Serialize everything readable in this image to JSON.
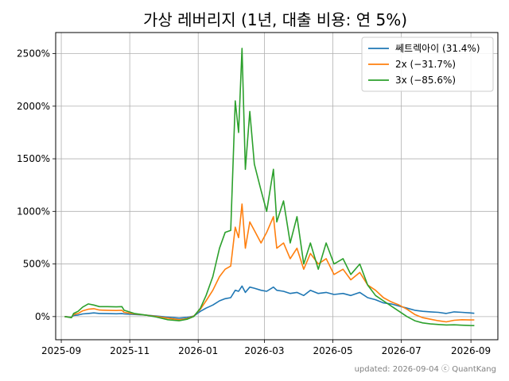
{
  "chart_data": {
    "type": "line",
    "title": "가상 레버리지 (1년, 대출 비용: 연 5%)",
    "xlabel": "",
    "ylabel": "",
    "x_ticks": [
      "2025-09",
      "2025-11",
      "2026-01",
      "2026-03",
      "2026-05",
      "2026-07",
      "2026-09"
    ],
    "y_ticks": [
      "0%",
      "500%",
      "1000%",
      "1500%",
      "2000%",
      "2500%"
    ],
    "xlim": [
      "2025-08-27",
      "2026-09-25"
    ],
    "ylim": [
      -220,
      2700
    ],
    "grid": true,
    "legend_position": "top-right",
    "colors": {
      "series_1": "#1f77b4",
      "series_2": "#ff7f0e",
      "series_3": "#2ca02c",
      "grid": "#b0b0b0"
    },
    "footer": "updated: 2026-09-04 ⓒ QuantKang",
    "series": [
      {
        "name": "쎄트렉아이 (31.4%)",
        "color": "#1f77b4",
        "points": [
          [
            "2025-09-04",
            0
          ],
          [
            "2025-09-10",
            -5
          ],
          [
            "2025-09-12",
            10
          ],
          [
            "2025-09-16",
            15
          ],
          [
            "2025-09-20",
            25
          ],
          [
            "2025-09-25",
            30
          ],
          [
            "2025-09-30",
            35
          ],
          [
            "2025-10-05",
            30
          ],
          [
            "2025-10-12",
            28
          ],
          [
            "2025-10-20",
            27
          ],
          [
            "2025-10-25",
            28
          ],
          [
            "2025-10-27",
            25
          ],
          [
            "2025-11-05",
            20
          ],
          [
            "2025-11-15",
            15
          ],
          [
            "2025-11-25",
            5
          ],
          [
            "2025-12-05",
            -5
          ],
          [
            "2025-12-15",
            -15
          ],
          [
            "2025-12-22",
            -8
          ],
          [
            "2025-12-28",
            5
          ],
          [
            "2026-01-03",
            50
          ],
          [
            "2026-01-08",
            80
          ],
          [
            "2026-01-14",
            110
          ],
          [
            "2026-01-20",
            150
          ],
          [
            "2026-01-25",
            170
          ],
          [
            "2026-01-30",
            180
          ],
          [
            "2026-02-03",
            250
          ],
          [
            "2026-02-06",
            240
          ],
          [
            "2026-02-09",
            290
          ],
          [
            "2026-02-12",
            230
          ],
          [
            "2026-02-16",
            280
          ],
          [
            "2026-02-20",
            270
          ],
          [
            "2026-02-26",
            250
          ],
          [
            "2026-03-03",
            240
          ],
          [
            "2026-03-09",
            280
          ],
          [
            "2026-03-12",
            250
          ],
          [
            "2026-03-18",
            240
          ],
          [
            "2026-03-24",
            220
          ],
          [
            "2026-03-30",
            230
          ],
          [
            "2026-04-05",
            200
          ],
          [
            "2026-04-11",
            250
          ],
          [
            "2026-04-18",
            220
          ],
          [
            "2026-04-25",
            230
          ],
          [
            "2026-05-02",
            210
          ],
          [
            "2026-05-10",
            220
          ],
          [
            "2026-05-17",
            200
          ],
          [
            "2026-05-25",
            230
          ],
          [
            "2026-06-01",
            180
          ],
          [
            "2026-06-08",
            160
          ],
          [
            "2026-06-15",
            130
          ],
          [
            "2026-06-22",
            120
          ],
          [
            "2026-06-29",
            100
          ],
          [
            "2026-07-06",
            80
          ],
          [
            "2026-07-13",
            60
          ],
          [
            "2026-07-20",
            50
          ],
          [
            "2026-07-27",
            45
          ],
          [
            "2026-08-03",
            40
          ],
          [
            "2026-08-10",
            30
          ],
          [
            "2026-08-17",
            45
          ],
          [
            "2026-08-24",
            40
          ],
          [
            "2026-08-31",
            35
          ],
          [
            "2026-09-04",
            31.4
          ]
        ]
      },
      {
        "name": "2x (−31.7%)",
        "color": "#ff7f0e",
        "points": [
          [
            "2025-09-04",
            0
          ],
          [
            "2025-09-10",
            -8
          ],
          [
            "2025-09-12",
            20
          ],
          [
            "2025-09-16",
            30
          ],
          [
            "2025-09-20",
            55
          ],
          [
            "2025-09-25",
            70
          ],
          [
            "2025-09-30",
            75
          ],
          [
            "2025-10-05",
            62
          ],
          [
            "2025-10-12",
            60
          ],
          [
            "2025-10-20",
            58
          ],
          [
            "2025-10-25",
            60
          ],
          [
            "2025-10-27",
            40
          ],
          [
            "2025-11-05",
            25
          ],
          [
            "2025-11-15",
            15
          ],
          [
            "2025-11-25",
            0
          ],
          [
            "2025-12-05",
            -15
          ],
          [
            "2025-12-15",
            -30
          ],
          [
            "2025-12-22",
            -20
          ],
          [
            "2025-12-28",
            5
          ],
          [
            "2026-01-03",
            70
          ],
          [
            "2026-01-08",
            150
          ],
          [
            "2026-01-14",
            250
          ],
          [
            "2026-01-20",
            380
          ],
          [
            "2026-01-25",
            450
          ],
          [
            "2026-01-30",
            480
          ],
          [
            "2026-02-03",
            850
          ],
          [
            "2026-02-06",
            750
          ],
          [
            "2026-02-09",
            1070
          ],
          [
            "2026-02-12",
            650
          ],
          [
            "2026-02-16",
            900
          ],
          [
            "2026-02-20",
            820
          ],
          [
            "2026-02-26",
            700
          ],
          [
            "2026-03-03",
            800
          ],
          [
            "2026-03-09",
            950
          ],
          [
            "2026-03-12",
            650
          ],
          [
            "2026-03-18",
            700
          ],
          [
            "2026-03-24",
            550
          ],
          [
            "2026-03-30",
            650
          ],
          [
            "2026-04-05",
            450
          ],
          [
            "2026-04-11",
            600
          ],
          [
            "2026-04-18",
            500
          ],
          [
            "2026-04-25",
            550
          ],
          [
            "2026-05-02",
            400
          ],
          [
            "2026-05-10",
            450
          ],
          [
            "2026-05-17",
            350
          ],
          [
            "2026-05-25",
            420
          ],
          [
            "2026-06-01",
            300
          ],
          [
            "2026-06-08",
            250
          ],
          [
            "2026-06-15",
            180
          ],
          [
            "2026-06-22",
            140
          ],
          [
            "2026-06-29",
            110
          ],
          [
            "2026-07-06",
            70
          ],
          [
            "2026-07-13",
            20
          ],
          [
            "2026-07-20",
            -10
          ],
          [
            "2026-07-27",
            -25
          ],
          [
            "2026-08-03",
            -40
          ],
          [
            "2026-08-10",
            -50
          ],
          [
            "2026-08-17",
            -35
          ],
          [
            "2026-08-24",
            -30
          ],
          [
            "2026-08-31",
            -32
          ],
          [
            "2026-09-04",
            -31.7
          ]
        ]
      },
      {
        "name": "3x (−85.6%)",
        "color": "#2ca02c",
        "points": [
          [
            "2025-09-04",
            0
          ],
          [
            "2025-09-10",
            -10
          ],
          [
            "2025-09-12",
            30
          ],
          [
            "2025-09-16",
            50
          ],
          [
            "2025-09-20",
            90
          ],
          [
            "2025-09-25",
            120
          ],
          [
            "2025-09-30",
            110
          ],
          [
            "2025-10-05",
            95
          ],
          [
            "2025-10-12",
            95
          ],
          [
            "2025-10-20",
            92
          ],
          [
            "2025-10-25",
            95
          ],
          [
            "2025-10-27",
            60
          ],
          [
            "2025-11-05",
            30
          ],
          [
            "2025-11-15",
            15
          ],
          [
            "2025-11-25",
            -5
          ],
          [
            "2025-12-05",
            -30
          ],
          [
            "2025-12-15",
            -40
          ],
          [
            "2025-12-22",
            -25
          ],
          [
            "2025-12-28",
            0
          ],
          [
            "2026-01-03",
            80
          ],
          [
            "2026-01-08",
            200
          ],
          [
            "2026-01-14",
            380
          ],
          [
            "2026-01-20",
            650
          ],
          [
            "2026-01-25",
            800
          ],
          [
            "2026-01-30",
            820
          ],
          [
            "2026-02-03",
            2050
          ],
          [
            "2026-02-06",
            1750
          ],
          [
            "2026-02-09",
            2550
          ],
          [
            "2026-02-12",
            1400
          ],
          [
            "2026-02-16",
            1950
          ],
          [
            "2026-02-20",
            1450
          ],
          [
            "2026-02-26",
            1200
          ],
          [
            "2026-03-03",
            1000
          ],
          [
            "2026-03-09",
            1400
          ],
          [
            "2026-03-12",
            900
          ],
          [
            "2026-03-18",
            1100
          ],
          [
            "2026-03-24",
            700
          ],
          [
            "2026-03-30",
            950
          ],
          [
            "2026-04-05",
            500
          ],
          [
            "2026-04-11",
            700
          ],
          [
            "2026-04-18",
            450
          ],
          [
            "2026-04-25",
            700
          ],
          [
            "2026-05-02",
            500
          ],
          [
            "2026-05-10",
            550
          ],
          [
            "2026-05-17",
            400
          ],
          [
            "2026-05-25",
            500
          ],
          [
            "2026-06-01",
            300
          ],
          [
            "2026-06-08",
            200
          ],
          [
            "2026-06-15",
            150
          ],
          [
            "2026-06-22",
            100
          ],
          [
            "2026-06-29",
            50
          ],
          [
            "2026-07-06",
            0
          ],
          [
            "2026-07-13",
            -40
          ],
          [
            "2026-07-20",
            -60
          ],
          [
            "2026-07-27",
            -70
          ],
          [
            "2026-08-03",
            -75
          ],
          [
            "2026-08-10",
            -80
          ],
          [
            "2026-08-17",
            -78
          ],
          [
            "2026-08-24",
            -82
          ],
          [
            "2026-08-31",
            -85
          ],
          [
            "2026-09-04",
            -85.6
          ]
        ]
      }
    ]
  }
}
